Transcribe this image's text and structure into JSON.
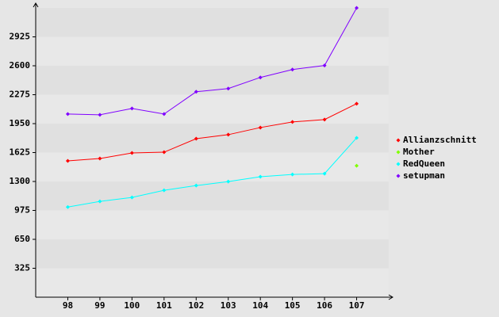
{
  "chart_data": {
    "type": "line",
    "categories": [
      "98",
      "99",
      "100",
      "101",
      "102",
      "103",
      "104",
      "105",
      "106",
      "107"
    ],
    "series": [
      {
        "name": "Allianzschnitt",
        "color": "#ff0000",
        "values": [
          1531,
          1558,
          1621,
          1629,
          1781,
          1826,
          1906,
          1969,
          1996,
          2174
        ]
      },
      {
        "name": "Mother",
        "color": "#80ff00",
        "values": [
          null,
          null,
          null,
          null,
          null,
          null,
          null,
          null,
          null,
          1477
        ]
      },
      {
        "name": "RedQueen",
        "color": "#00ffff",
        "values": [
          1013,
          1076,
          1121,
          1201,
          1254,
          1299,
          1353,
          1379,
          1388,
          1790
        ]
      },
      {
        "name": "setupman",
        "color": "#8000ff",
        "values": [
          2058,
          2049,
          2120,
          2058,
          2308,
          2344,
          2469,
          2558,
          2603,
          3250
        ]
      }
    ],
    "ylim": [
      0,
      3250
    ],
    "yticks": [
      325,
      650,
      975,
      1300,
      1625,
      1950,
      2275,
      2600,
      2925
    ],
    "grid": true,
    "legend": "right"
  }
}
